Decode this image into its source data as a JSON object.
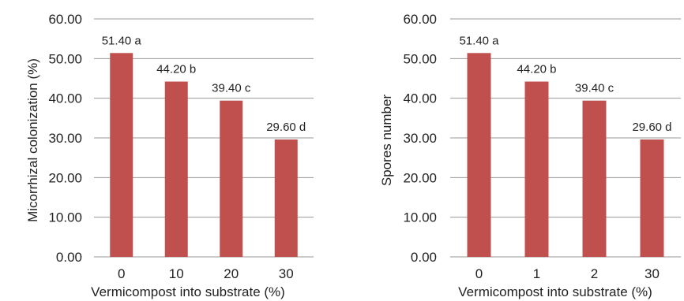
{
  "colors": {
    "bar": "#C0504D",
    "grid": "#9a9a9a",
    "axis": "#9a9a9a",
    "text": "#222222"
  },
  "chart_data": [
    {
      "type": "bar",
      "title": "",
      "xlabel": "Vermicompost into substrate (%)",
      "ylabel": "Micorrhizal colonization (%)",
      "ylim": [
        0,
        60
      ],
      "y_ticks": [
        "0.00",
        "10.00",
        "20.00",
        "30.00",
        "40.00",
        "50.00",
        "60.00"
      ],
      "categories": [
        "0",
        "10",
        "20",
        "30"
      ],
      "values": [
        51.4,
        44.2,
        39.4,
        29.6
      ],
      "data_labels": [
        "51.40 a",
        "44.20 b",
        "39.40 c",
        "29.60 d"
      ],
      "grid": true
    },
    {
      "type": "bar",
      "title": "",
      "xlabel": "Vermicompost into substrate (%)",
      "ylabel": "Spores  number",
      "ylim": [
        0,
        60
      ],
      "y_ticks": [
        "0.00",
        "10.00",
        "20.00",
        "30.00",
        "40.00",
        "50.00",
        "60.00"
      ],
      "categories": [
        "0",
        "1",
        "2",
        "30"
      ],
      "values": [
        51.4,
        44.2,
        39.4,
        29.6
      ],
      "data_labels": [
        "51.40 a",
        "44.20 b",
        "39.40 c",
        "29.60 d"
      ],
      "grid": true
    }
  ]
}
